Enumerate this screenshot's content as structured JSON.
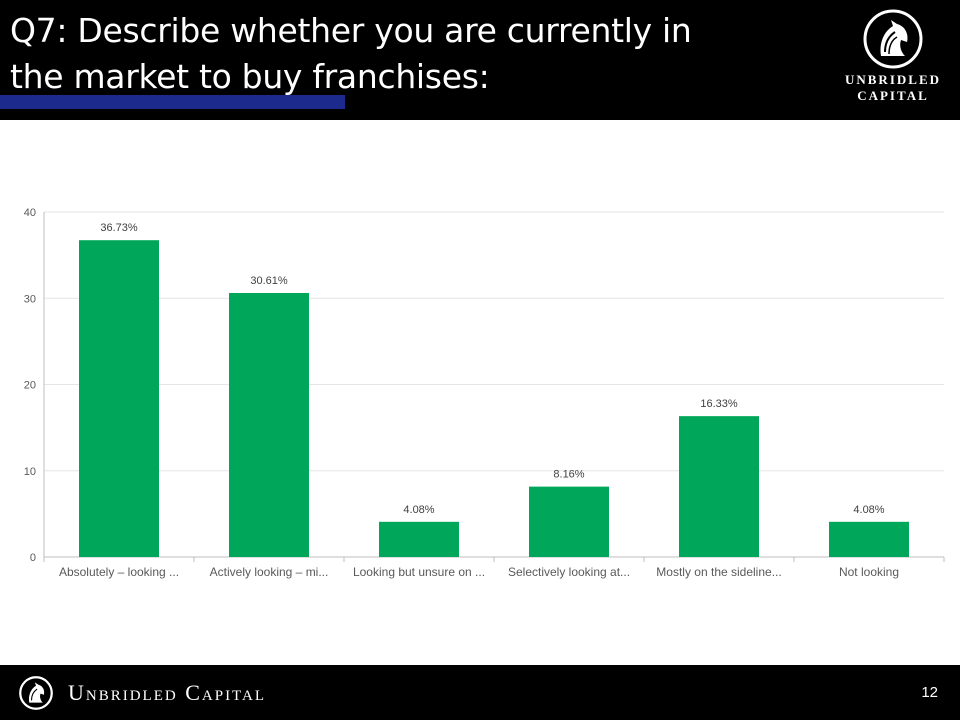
{
  "header": {
    "title": "Q7: Describe whether you are currently in\nthe market to buy franchises:",
    "logo_line1": "UNBRIDLED",
    "logo_line2": "CAPITAL",
    "logo_icon": "horse-head-icon"
  },
  "colors": {
    "header_bg": "#000000",
    "accent_underline": "#1b2a8c",
    "bar": "#00a65a",
    "grid": "#e6e6e6",
    "axis": "#bfbfbf",
    "text": "#595959"
  },
  "chart_data": {
    "type": "bar",
    "categories": [
      "Absolutely – looking ...",
      "Actively looking – mi...",
      "Looking but unsure on ...",
      "Selectively looking at...",
      "Mostly on the sideline...",
      "Not looking"
    ],
    "values": [
      36.73,
      30.61,
      4.08,
      8.16,
      16.33,
      4.08
    ],
    "data_labels": [
      "36.73%",
      "30.61%",
      "4.08%",
      "8.16%",
      "16.33%",
      "4.08%"
    ],
    "yticks": [
      0,
      10,
      20,
      30,
      40
    ],
    "ylim": [
      0,
      40
    ],
    "grid": true,
    "legend": "none"
  },
  "footer": {
    "brand": "Unbridled Capital",
    "page_number": "12",
    "logo_icon": "horse-head-icon"
  }
}
